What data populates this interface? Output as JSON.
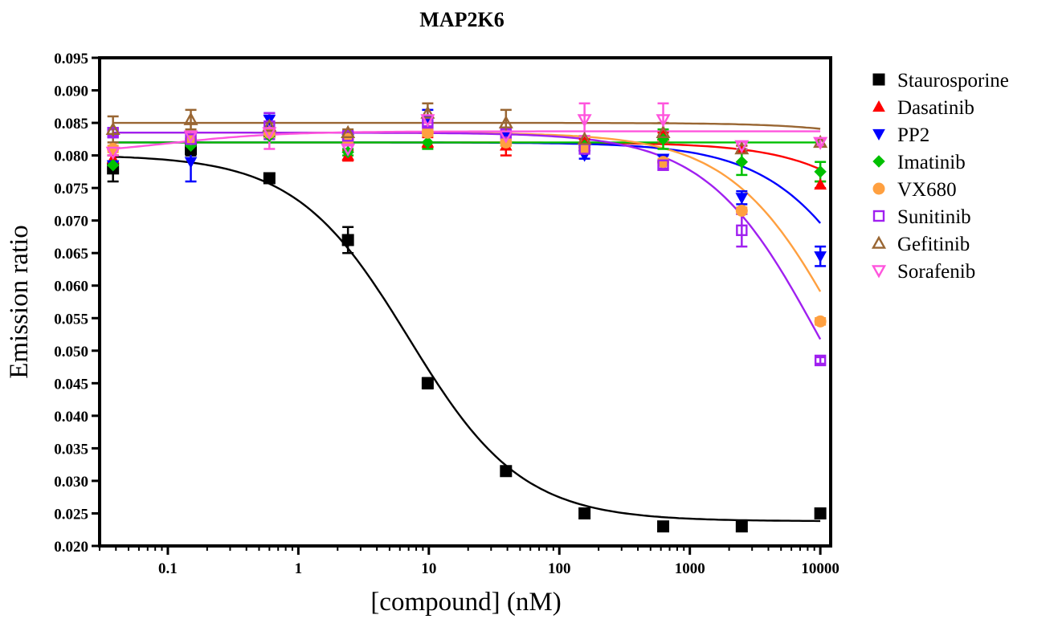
{
  "chart_data": {
    "type": "scatter",
    "title": "MAP2K6",
    "xlabel": "[compound] (nM)",
    "ylabel": "Emission ratio",
    "x_scale": "log",
    "xlim": [
      0.03,
      12000
    ],
    "ylim": [
      0.02,
      0.095
    ],
    "x_ticks": [
      0.1,
      1,
      10,
      100,
      1000,
      10000
    ],
    "x_tick_labels": [
      "0.1",
      "1",
      "10",
      "100",
      "1000",
      "10000"
    ],
    "y_ticks": [
      0.02,
      0.025,
      0.03,
      0.035,
      0.04,
      0.045,
      0.05,
      0.055,
      0.06,
      0.065,
      0.07,
      0.075,
      0.08,
      0.085,
      0.09,
      0.095
    ],
    "y_tick_labels": [
      "0.020",
      "0.025",
      "0.030",
      "0.035",
      "0.040",
      "0.045",
      "0.050",
      "0.055",
      "0.060",
      "0.065",
      "0.070",
      "0.075",
      "0.080",
      "0.085",
      "0.090",
      "0.095"
    ],
    "legend_position": "right",
    "x": [
      0.038,
      0.15,
      0.6,
      2.4,
      9.8,
      39,
      156,
      625,
      2500,
      10000
    ],
    "series": [
      {
        "name": "Staurosporine",
        "color": "#000000",
        "marker": "square-filled",
        "values": [
          0.078,
          0.081,
          0.0765,
          0.067,
          0.045,
          0.0315,
          0.025,
          0.023,
          0.023,
          0.025
        ],
        "errors": [
          0.002,
          0.001,
          0.0003,
          0.002,
          0.0008,
          0.0003,
          0.0003,
          0.0003,
          0.0003,
          0.0003
        ],
        "fit": {
          "top": 0.0801,
          "bottom": 0.0238,
          "ic50": 7.0,
          "hill": 1.0
        }
      },
      {
        "name": "Dasatinib",
        "color": "#ff0000",
        "marker": "triangle-up-filled",
        "values": [
          0.0795,
          0.0825,
          0.0835,
          0.08,
          0.082,
          0.0815,
          0.082,
          0.083,
          0.081,
          0.0755
        ],
        "errors": [
          0.0005,
          0.0005,
          0.0005,
          0.0008,
          0.0008,
          0.0015,
          0.0005,
          0.0005,
          0.0005,
          0.0005
        ],
        "fit": {
          "top": 0.082,
          "bottom": 0.02,
          "ic50": 140000,
          "hill": 1.0
        }
      },
      {
        "name": "PP2",
        "color": "#0000ff",
        "marker": "triangle-down-filled",
        "values": [
          0.0785,
          0.079,
          0.0855,
          0.0825,
          0.0855,
          0.083,
          0.08,
          0.0795,
          0.0735,
          0.0645
        ],
        "errors": [
          0.0005,
          0.003,
          0.001,
          0.0005,
          0.0015,
          0.0005,
          0.0005,
          0.0005,
          0.001,
          0.0015
        ],
        "fit": {
          "top": 0.082,
          "bottom": 0.02,
          "ic50": 40000,
          "hill": 1.0
        }
      },
      {
        "name": "Imatinib",
        "color": "#00c000",
        "marker": "diamond-filled",
        "values": [
          0.0785,
          0.0815,
          0.083,
          0.0805,
          0.082,
          0.082,
          0.0815,
          0.0825,
          0.079,
          0.0775
        ],
        "errors": [
          0.0005,
          0.0005,
          0.0005,
          0.0005,
          0.001,
          0.0005,
          0.0005,
          0.0015,
          0.002,
          0.0015
        ],
        "fit": {
          "top": 0.082,
          "bottom": 0.082,
          "ic50": 1000,
          "hill": 1.0
        }
      },
      {
        "name": "VX680",
        "color": "#ffa040",
        "marker": "circle-filled",
        "values": [
          0.081,
          0.0825,
          0.0835,
          0.0825,
          0.0835,
          0.082,
          0.081,
          0.079,
          0.0715,
          0.0545
        ],
        "errors": [
          0.0005,
          0.0005,
          0.0005,
          0.0005,
          0.0005,
          0.0005,
          0.0005,
          0.0005,
          0.0005,
          0.0005
        ],
        "fit": {
          "top": 0.0835,
          "bottom": 0.02,
          "ic50": 16000,
          "hill": 1.0
        }
      },
      {
        "name": "Sunitinib",
        "color": "#a020f0",
        "marker": "square-open",
        "values": [
          0.0835,
          0.0825,
          0.0845,
          0.083,
          0.085,
          0.0835,
          0.081,
          0.0785,
          0.0685,
          0.0485
        ],
        "errors": [
          0.0005,
          0.0005,
          0.002,
          0.0005,
          0.0005,
          0.0005,
          0.0005,
          0.0005,
          0.0025,
          0.0005
        ],
        "fit": {
          "top": 0.0835,
          "bottom": 0.02,
          "ic50": 10000,
          "hill": 1.0
        }
      },
      {
        "name": "Gefitinib",
        "color": "#996633",
        "marker": "triangle-up-open",
        "values": [
          0.084,
          0.0855,
          0.0845,
          0.0835,
          0.0865,
          0.085,
          0.0825,
          0.0835,
          0.081,
          0.082
        ],
        "errors": [
          0.002,
          0.0015,
          0.0005,
          0.0005,
          0.0015,
          0.002,
          0.0005,
          0.0015,
          0.0005,
          0.0005
        ],
        "fit": {
          "top": 0.085,
          "bottom": 0.02,
          "ic50": 700000,
          "hill": 1.0
        }
      },
      {
        "name": "Sorafenib",
        "color": "#ff55dd",
        "marker": "triangle-down-open",
        "values": [
          0.0805,
          0.083,
          0.0835,
          0.081,
          0.0855,
          0.083,
          0.0855,
          0.0855,
          0.0815,
          0.082
        ],
        "errors": [
          0.0005,
          0.0005,
          0.0025,
          0.0005,
          0.0005,
          0.0005,
          0.0025,
          0.0025,
          0.0005,
          0.0005
        ],
        "fit": {
          "top": 0.0837,
          "bottom": 0.08,
          "ic50": 0.1,
          "hill": -1.0
        }
      }
    ]
  }
}
